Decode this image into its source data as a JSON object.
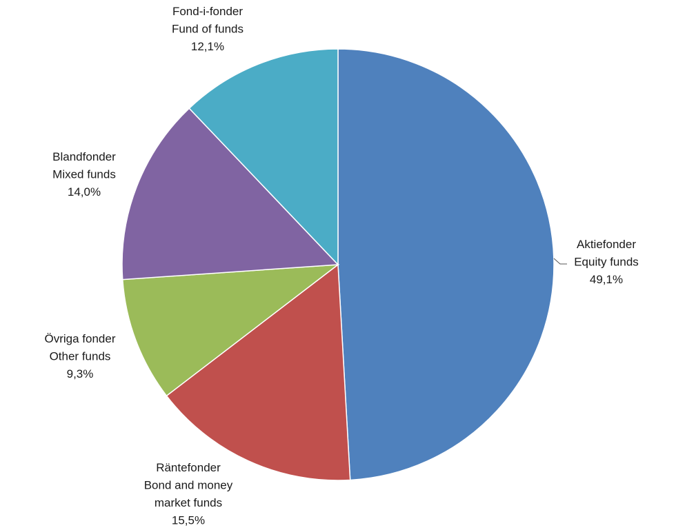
{
  "chart_data": {
    "type": "pie",
    "slices": [
      {
        "label_sv": "Aktiefonder",
        "label_en": "Equity funds",
        "value_text": "49,1%",
        "value": 49.1,
        "color": "#4F81BD"
      },
      {
        "label_sv": "Räntefonder",
        "label_en": "Bond and money market funds",
        "value_text": "15,5%",
        "value": 15.5,
        "color": "#C0504D"
      },
      {
        "label_sv": "Övriga fonder",
        "label_en": "Other funds",
        "value_text": "9,3%",
        "value": 9.3,
        "color": "#9BBB59"
      },
      {
        "label_sv": "Blandfonder",
        "label_en": "Mixed funds",
        "value_text": "14,0%",
        "value": 14.0,
        "color": "#8064A2"
      },
      {
        "label_sv": "Fond-i-fonder",
        "label_en": "Fund of funds",
        "value_text": "12,1%",
        "value": 12.1,
        "color": "#4BACC6"
      }
    ],
    "start": "12 o'clock",
    "direction": "clockwise",
    "legend": "none"
  }
}
